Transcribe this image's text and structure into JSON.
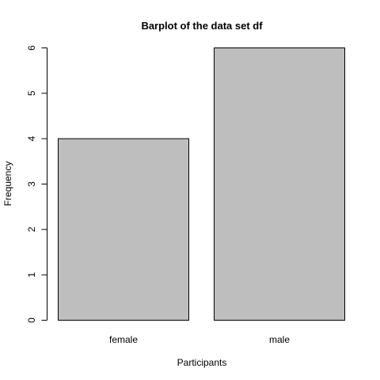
{
  "chart_data": {
    "type": "bar",
    "title": "Barplot of the data set df",
    "xlabel": "Participants",
    "ylabel": "Frequency",
    "categories": [
      "female",
      "male"
    ],
    "values": [
      4,
      6
    ],
    "ylim": [
      0,
      6
    ],
    "yticks": [
      0,
      1,
      2,
      3,
      4,
      5,
      6
    ],
    "grid": false,
    "legend": "none",
    "colors": {
      "bar_fill": "#bebebe",
      "bar_stroke": "#000000",
      "axis": "#000000",
      "background": "#ffffff"
    }
  }
}
